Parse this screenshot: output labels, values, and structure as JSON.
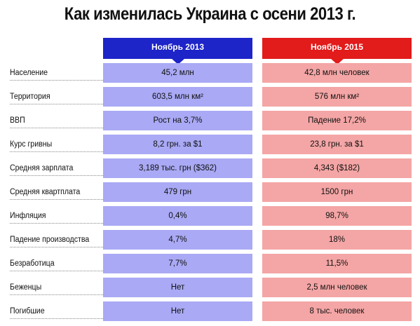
{
  "title": "Как изменилась Украина с осени 2013 г.",
  "columns": [
    "Ноябрь 2013",
    "Ноябрь 2015"
  ],
  "colors": {
    "col1_header": "#1d24c8",
    "col1_cells": "#a9a9f5",
    "col2_header": "#e21b1b",
    "col2_cells": "#f4a5a5"
  },
  "rows": [
    {
      "label": "Население",
      "v2013": "45,2 млн",
      "v2015": "42,8 млн человек"
    },
    {
      "label": "Территория",
      "v2013": "603,5 млн км²",
      "v2015": "576 млн км²"
    },
    {
      "label": "ВВП",
      "v2013": "Рост на 3,7%",
      "v2015": "Падение 17,2%"
    },
    {
      "label": "Курс гривны",
      "v2013": "8,2 грн. за $1",
      "v2015": "23,8 грн. за $1"
    },
    {
      "label": "Средняя зарплата",
      "v2013": "3,189 тыс. грн ($362)",
      "v2015": "4,343 ($182)"
    },
    {
      "label": "Средняя квартплата",
      "v2013": "479 грн",
      "v2015": "1500 грн"
    },
    {
      "label": "Инфляция",
      "v2013": "0,4%",
      "v2015": "98,7%"
    },
    {
      "label": "Падение производства",
      "v2013": "4,7%",
      "v2015": "18%"
    },
    {
      "label": "Безработица",
      "v2013": "7,7%",
      "v2015": "11,5%"
    },
    {
      "label": "Беженцы",
      "v2013": "Нет",
      "v2015": "2,5 млн человек"
    },
    {
      "label": "Погибшие",
      "v2013": "Нет",
      "v2015": "8 тыс. человек"
    }
  ]
}
